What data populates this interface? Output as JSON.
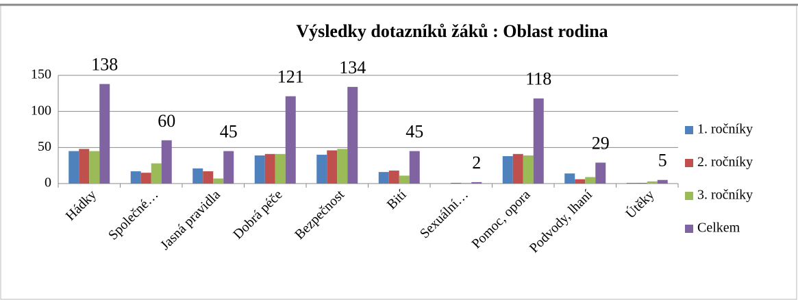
{
  "chart_data": {
    "type": "bar",
    "title": "Výsledky dotazníků žáků : Oblast rodina",
    "categories": [
      "Hádky",
      "Společné…",
      "Jasná pravidla",
      "Dobrá péče",
      "Bezpečnost",
      "Bití",
      "Sexuální…",
      "Pomoc, opora",
      "Podvody, lhaní",
      "Útěky"
    ],
    "series": [
      {
        "name": "1. ročníky",
        "color": "#4f81bd",
        "values": [
          45,
          17,
          21,
          39,
          40,
          16,
          0,
          38,
          14,
          1
        ]
      },
      {
        "name": "2. ročníky",
        "color": "#c0504d",
        "values": [
          48,
          15,
          17,
          41,
          46,
          18,
          1,
          41,
          6,
          1
        ]
      },
      {
        "name": "3. ročníky",
        "color": "#9bbb59",
        "values": [
          45,
          28,
          7,
          41,
          48,
          11,
          1,
          39,
          9,
          3
        ]
      },
      {
        "name": "Celkem",
        "color": "#8064a2",
        "values": [
          138,
          60,
          45,
          121,
          134,
          45,
          2,
          118,
          29,
          5
        ]
      }
    ],
    "data_labels_series": 3,
    "ylim": [
      0,
      150
    ],
    "yticks": [
      0,
      50,
      100,
      150
    ],
    "grid": true,
    "legend": "right"
  }
}
